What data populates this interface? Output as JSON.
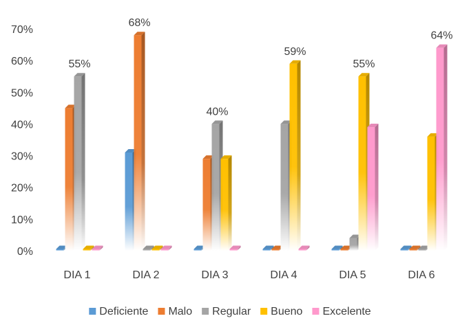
{
  "chart_data": {
    "type": "bar",
    "title": "",
    "xlabel": "",
    "ylabel": "",
    "categories": [
      "DIA 1",
      "DIA 2",
      "DIA 3",
      "DIA 4",
      "DIA 5",
      "DIA 6"
    ],
    "ylim": [
      0,
      70
    ],
    "yticks": [
      0,
      10,
      20,
      30,
      40,
      50,
      60,
      70
    ],
    "ytick_labels": [
      "0%",
      "10%",
      "20%",
      "30%",
      "40%",
      "50%",
      "60%",
      "70%"
    ],
    "grid": false,
    "legend": "bottom",
    "series": [
      {
        "name": "Deficiente",
        "color": "#5b9bd5",
        "values": [
          0,
          31,
          0,
          0,
          0,
          0
        ]
      },
      {
        "name": "Malo",
        "color": "#ed7d31",
        "values": [
          45,
          68,
          29,
          0,
          0,
          0
        ]
      },
      {
        "name": "Regular",
        "color": "#a5a5a5",
        "values": [
          55,
          0,
          40,
          40,
          4,
          0
        ]
      },
      {
        "name": "Bueno",
        "color": "#ffc000",
        "values": [
          0,
          0,
          29,
          59,
          55,
          36
        ]
      },
      {
        "name": "Excelente",
        "color": "#ff99cc",
        "values": [
          0,
          0,
          0,
          0,
          39,
          64
        ]
      }
    ],
    "annotations": [
      {
        "category": "DIA 1",
        "series": "Regular",
        "text": "55%"
      },
      {
        "category": "DIA 2",
        "series": "Malo",
        "text": "68%"
      },
      {
        "category": "DIA 3",
        "series": "Regular",
        "text": "40%"
      },
      {
        "category": "DIA 4",
        "series": "Bueno",
        "text": "59%"
      },
      {
        "category": "DIA 5",
        "series": "Bueno",
        "text": "55%"
      },
      {
        "category": "DIA 6",
        "series": "Excelente",
        "text": "64%"
      }
    ]
  }
}
